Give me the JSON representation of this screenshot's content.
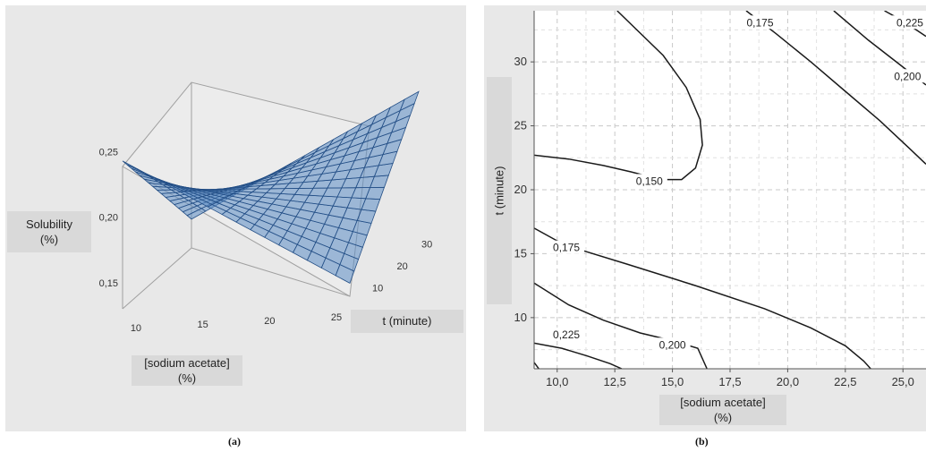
{
  "chart_data": [
    {
      "type": "surface",
      "panel": "(a)",
      "zlabel": [
        "Solubility",
        "(%)"
      ],
      "xlabel": [
        "[sodium acetate]",
        "(%)"
      ],
      "ylabel": "t (minute)",
      "x_ticks": [
        "10",
        "15",
        "20",
        "25"
      ],
      "y_ticks": [
        "10",
        "20",
        "30"
      ],
      "z_ticks": [
        "0,25",
        "0,20",
        "0,15"
      ],
      "xlim": [
        9,
        26
      ],
      "ylim": [
        6,
        34
      ],
      "zlim": [
        0.13,
        0.26
      ],
      "surface_color": "#5b8cc4",
      "mesh_color": "#244f86",
      "corners": [
        {
          "x": 9,
          "t": 6,
          "solubility": 0.243
        },
        {
          "x": 26,
          "t": 6,
          "solubility": 0.14
        },
        {
          "x": 26,
          "t": 34,
          "solubility": 0.24
        },
        {
          "x": 9,
          "t": 34,
          "solubility": 0.152
        }
      ]
    },
    {
      "type": "contour",
      "panel": "(b)",
      "xlabel": [
        "[sodium acetate]",
        "(%)"
      ],
      "ylabel": "t (minute)",
      "x_ticks": [
        10.0,
        12.5,
        15.0,
        17.5,
        20.0,
        22.5,
        25.0
      ],
      "x_tick_labels": [
        "10,0",
        "12,5",
        "15,0",
        "17,5",
        "20,0",
        "22,5",
        "25,0"
      ],
      "y_ticks": [
        10,
        15,
        20,
        25,
        30
      ],
      "y_tick_labels": [
        "10",
        "15",
        "20",
        "25",
        "30"
      ],
      "xlim": [
        9,
        26
      ],
      "ylim": [
        6,
        34
      ],
      "grid": true,
      "contours": [
        {
          "level": "0,150",
          "points": [
            [
              9.0,
              22.7
            ],
            [
              10.5,
              22.4
            ],
            [
              12.0,
              21.9
            ],
            [
              13.2,
              21.4
            ],
            [
              14.5,
              20.8
            ],
            [
              15.4,
              20.8
            ],
            [
              16.0,
              21.7
            ],
            [
              16.3,
              23.5
            ],
            [
              16.2,
              25.5
            ],
            [
              15.6,
              28.0
            ],
            [
              14.6,
              30.5
            ],
            [
              13.4,
              32.6
            ],
            [
              12.6,
              34.0
            ]
          ],
          "label": {
            "x": 14.0,
            "y": 20.6
          }
        },
        {
          "level": "0,175",
          "points": [
            [
              18.2,
              34.0
            ],
            [
              19.5,
              32.2
            ],
            [
              21.0,
              30.0
            ],
            [
              22.5,
              27.7
            ],
            [
              24.0,
              25.4
            ],
            [
              25.3,
              23.2
            ],
            [
              26.0,
              22.0
            ]
          ],
          "label": {
            "x": 18.8,
            "y": 33.0
          }
        },
        {
          "level": "0,225",
          "points": [
            [
              24.2,
              34.0
            ],
            [
              25.0,
              33.2
            ],
            [
              26.0,
              32.0
            ]
          ],
          "label": {
            "x": 25.3,
            "y": 33.0
          }
        },
        {
          "level": "0,200",
          "points": [
            [
              22.0,
              34.0
            ],
            [
              23.5,
              31.7
            ],
            [
              25.0,
              29.6
            ],
            [
              26.0,
              28.2
            ]
          ],
          "label": {
            "x": 25.2,
            "y": 28.8
          }
        },
        {
          "level": "0,175",
          "points": [
            [
              9.0,
              17.0
            ],
            [
              10.0,
              16.0
            ],
            [
              11.0,
              15.3
            ],
            [
              13.0,
              14.2
            ],
            [
              16.0,
              12.5
            ],
            [
              19.0,
              10.7
            ],
            [
              21.0,
              9.2
            ],
            [
              22.5,
              7.8
            ],
            [
              23.3,
              6.6
            ],
            [
              23.6,
              6.0
            ]
          ],
          "label": {
            "x": 10.4,
            "y": 15.4
          }
        },
        {
          "level": "0,200",
          "points": [
            [
              9.0,
              12.7
            ],
            [
              10.5,
              11.0
            ],
            [
              12.0,
              9.8
            ],
            [
              13.6,
              8.8
            ],
            [
              15.0,
              8.2
            ],
            [
              16.1,
              7.6
            ],
            [
              16.5,
              6.0
            ]
          ],
          "label": {
            "x": 15.0,
            "y": 7.8
          }
        },
        {
          "level": "0,225",
          "points": [
            [
              9.0,
              8.0
            ],
            [
              10.2,
              7.6
            ],
            [
              11.3,
              7.0
            ],
            [
              12.3,
              6.4
            ],
            [
              12.8,
              6.0
            ]
          ],
          "label": {
            "x": 10.4,
            "y": 8.6
          }
        },
        {
          "level": "",
          "points": [
            [
              9.0,
              6.5
            ],
            [
              9.2,
              6.0
            ]
          ],
          "label": null
        }
      ]
    }
  ],
  "captions": {
    "a": "(a)",
    "b": "(b)"
  }
}
